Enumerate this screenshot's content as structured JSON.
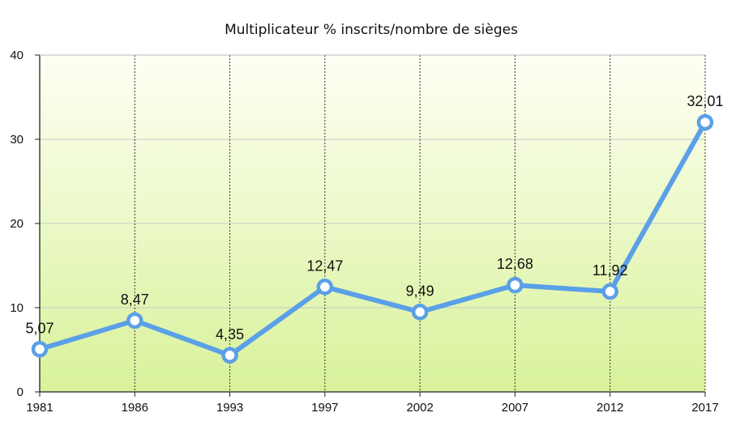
{
  "chart_data": {
    "type": "line",
    "title": "Multiplicateur % inscrits/nombre de sièges",
    "xlabel": "",
    "ylabel": "",
    "categories": [
      "1981",
      "1986",
      "1993",
      "1997",
      "2002",
      "2007",
      "2012",
      "2017"
    ],
    "series": [
      {
        "values": [
          5.07,
          8.47,
          4.35,
          12.47,
          9.49,
          12.68,
          11.92,
          32.01
        ],
        "labels": [
          "5,07",
          "8,47",
          "4,35",
          "12,47",
          "9,49",
          "12,68",
          "11,92",
          "32,01"
        ],
        "color": "#5aa0e8"
      }
    ],
    "ylim": [
      0,
      40
    ],
    "yticks": [
      "0",
      "10",
      "20",
      "30",
      "40"
    ],
    "grid": {
      "horizontal": true,
      "vertical": "dotted"
    },
    "background": {
      "top_color": "#fefff4",
      "bottom_color": "#d8f29a"
    },
    "legend": "none"
  }
}
